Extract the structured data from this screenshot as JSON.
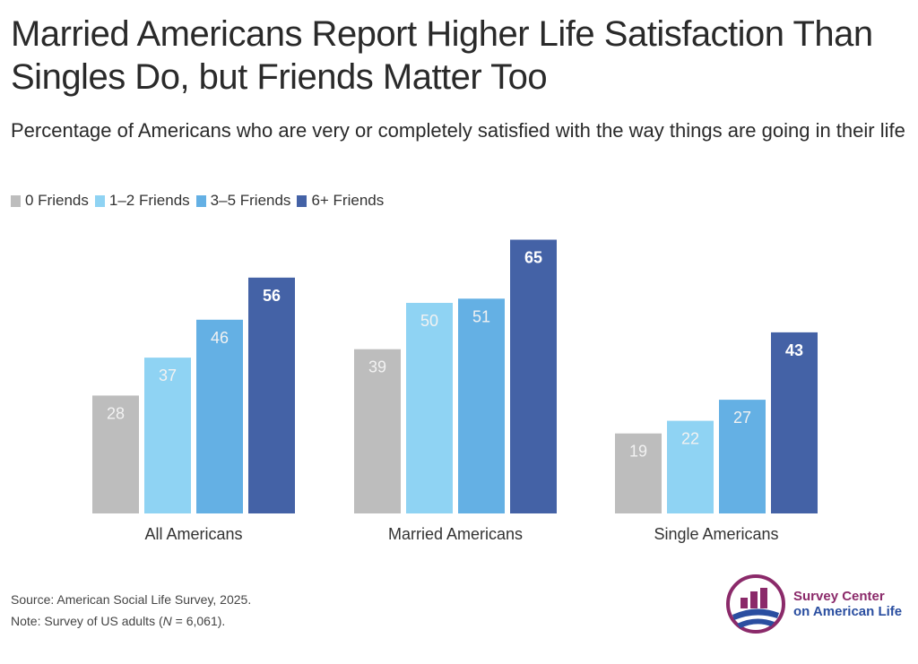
{
  "title": "Married Americans Report Higher Life Satisfaction Than Singles Do, but Friends Matter Too",
  "subtitle": "Percentage of Americans who are very or completely satisfied with the way things are going in their life",
  "colors": {
    "series": [
      "#bdbdbd",
      "#8fd3f3",
      "#64b0e4",
      "#4462a6"
    ],
    "label_light": "#f2f2f2",
    "label_dark": "#ffffff",
    "logo_purple": "#8b2a6a",
    "logo_blue": "#2a4ea0"
  },
  "chart_data": {
    "type": "bar",
    "title": "Married Americans Report Higher Life Satisfaction Than Singles Do, but Friends Matter Too",
    "subtitle": "Percentage of Americans who are very or completely satisfied with the way things are going in their life",
    "categories": [
      "All Americans",
      "Married Americans",
      "Single Americans"
    ],
    "series": [
      {
        "name": "0 Friends",
        "values": [
          28,
          39,
          19
        ]
      },
      {
        "name": "1–2 Friends",
        "values": [
          37,
          50,
          22
        ]
      },
      {
        "name": "3–5 Friends",
        "values": [
          46,
          51,
          27
        ]
      },
      {
        "name": "6+ Friends",
        "values": [
          56,
          65,
          43
        ]
      }
    ],
    "ylim": [
      0,
      65
    ],
    "grid": false,
    "legend": "top-left",
    "data_labels": true
  },
  "footer": {
    "source": "Source: American Social Life Survey, 2025.",
    "note_prefix": "Note: Survey of US adults (",
    "note_n": "N",
    "note_suffix": " = 6,061)."
  },
  "logo": {
    "line1": "Survey Center",
    "line2": "on American Life",
    "icon": "survey-center-logo-icon"
  }
}
